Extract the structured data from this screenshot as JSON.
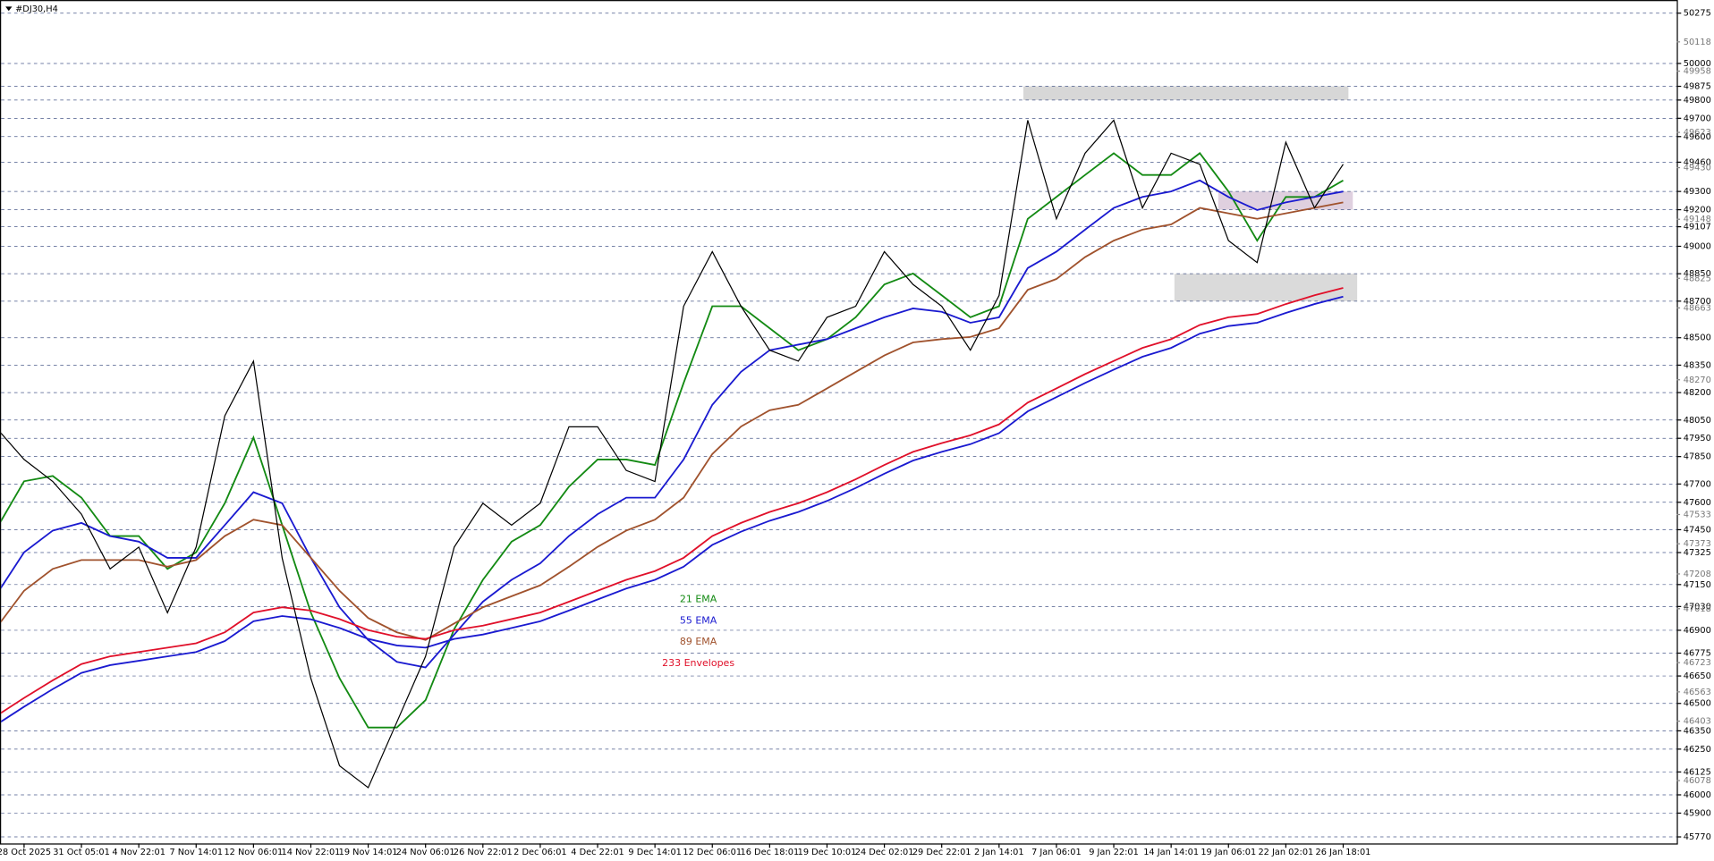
{
  "chart_data": {
    "type": "line",
    "title": "#DJ30,H4",
    "categories": [
      null,
      "28 Oct 2025",
      null,
      "31 Oct 05:01",
      null,
      "4 Nov 22:01",
      null,
      "7 Nov 14:01",
      null,
      "12 Nov 06:01",
      null,
      "14 Nov 22:01",
      null,
      "19 Nov 14:01",
      null,
      "24 Nov 06:01",
      null,
      "26 Nov 22:01",
      null,
      "2 Dec 06:01",
      null,
      "4 Dec 22:01",
      null,
      "9 Dec 14:01",
      null,
      "12 Dec 06:01",
      null,
      "16 Dec 18:01",
      null,
      "19 Dec 10:01",
      null,
      "24 Dec 02:01",
      null,
      "29 Dec 22:01",
      null,
      "2 Jan 14:01",
      null,
      "7 Jan 06:01",
      null,
      "9 Jan 22:01",
      null,
      "14 Jan 14:01",
      null,
      "19 Jan 06:01",
      null,
      "22 Jan 02:01",
      null,
      "26 Jan 18:01"
    ],
    "price": {
      "color": "#000000",
      "values": [
        48013,
        47834,
        47714,
        47535,
        47236,
        47355,
        46996,
        47355,
        48073,
        48372,
        47295,
        46637,
        46159,
        46039,
        46398,
        46757,
        47355,
        47595,
        47475,
        47595,
        48013,
        48013,
        47774,
        47714,
        48672,
        48971,
        48672,
        48432,
        48372,
        48612,
        48672,
        48971,
        48791,
        48672,
        48432,
        48731,
        49689,
        49150,
        49509,
        49689,
        49210,
        49509,
        49449,
        49031,
        48911,
        49569,
        49210,
        49449
      ]
    },
    "series": [
      {
        "name": "21 EMA",
        "color": "#138a13",
        "values": [
          47445,
          47715,
          47744,
          47625,
          47415,
          47415,
          47236,
          47326,
          47595,
          47954,
          47475,
          46997,
          46638,
          46368,
          46368,
          46518,
          46907,
          47176,
          47385,
          47475,
          47685,
          47834,
          47834,
          47804,
          48253,
          48672,
          48672,
          48552,
          48432,
          48492,
          48612,
          48791,
          48851,
          48732,
          48612,
          48672,
          49150,
          49270,
          49390,
          49509,
          49390,
          49390,
          49509,
          49300,
          49031,
          49270,
          49270,
          49360
        ]
      },
      {
        "name": "55 EMA",
        "color": "#1a1ad0",
        "values": [
          47086,
          47326,
          47445,
          47487,
          47415,
          47385,
          47296,
          47296,
          47475,
          47655,
          47595,
          47296,
          47026,
          46847,
          46727,
          46697,
          46877,
          47056,
          47176,
          47266,
          47415,
          47535,
          47625,
          47625,
          47834,
          48133,
          48313,
          48432,
          48462,
          48492,
          48552,
          48612,
          48660,
          48642,
          48582,
          48612,
          48881,
          48971,
          49091,
          49210,
          49270,
          49300,
          49360,
          49270,
          49198,
          49240,
          49270,
          49300
        ]
      },
      {
        "name": "89 EMA",
        "color": "#a0522d",
        "values": [
          46907,
          47116,
          47236,
          47284,
          47284,
          47284,
          47248,
          47284,
          47415,
          47505,
          47475,
          47296,
          47116,
          46967,
          46889,
          46847,
          46937,
          47026,
          47086,
          47146,
          47248,
          47356,
          47445,
          47505,
          47625,
          47864,
          48014,
          48103,
          48133,
          48223,
          48313,
          48403,
          48474,
          48492,
          48504,
          48552,
          48762,
          48821,
          48941,
          49031,
          49091,
          49120,
          49210,
          49180,
          49150,
          49180,
          49210,
          49240
        ]
      },
      {
        "name": "233 Envelopes",
        "color": "#e0102a",
        "lower_color": "#1a1ad0",
        "values": [
          46428,
          46530,
          46626,
          46715,
          46757,
          46781,
          46805,
          46829,
          46889,
          46997,
          47026,
          47008,
          46961,
          46901,
          46865,
          46853,
          46901,
          46925,
          46961,
          46997,
          47056,
          47116,
          47176,
          47224,
          47296,
          47415,
          47487,
          47547,
          47595,
          47655,
          47726,
          47804,
          47876,
          47924,
          47966,
          48026,
          48145,
          48223,
          48301,
          48373,
          48444,
          48492,
          48570,
          48612,
          48630,
          48684,
          48732,
          48773
        ],
        "lower": [
          46380,
          46482,
          46578,
          46667,
          46709,
          46733,
          46757,
          46781,
          46841,
          46949,
          46978,
          46960,
          46913,
          46853,
          46817,
          46805,
          46853,
          46877,
          46913,
          46949,
          47008,
          47068,
          47128,
          47176,
          47248,
          47367,
          47439,
          47499,
          47547,
          47607,
          47678,
          47756,
          47828,
          47876,
          47918,
          47978,
          48097,
          48175,
          48253,
          48325,
          48396,
          48444,
          48522,
          48564,
          48582,
          48636,
          48684,
          48725
        ]
      }
    ],
    "zones": [
      {
        "low": 49800,
        "high": 49875,
        "color": "#d3d3d3"
      },
      {
        "low": 49200,
        "high": 49300,
        "color": "#dccbdc"
      },
      {
        "low": 48700,
        "high": 48850,
        "color": "#d6d6d6"
      }
    ],
    "ylim": [
      45770,
      50275
    ],
    "yticks": [
      50275,
      50000,
      49875,
      49800,
      49700,
      49600,
      49460,
      49300,
      49200,
      49107,
      49000,
      48850,
      48700,
      48500,
      48350,
      48200,
      48050,
      47950,
      47850,
      47700,
      47600,
      47450,
      47325,
      47150,
      47030,
      46900,
      46775,
      46650,
      46500,
      46350,
      46250,
      46125,
      46000,
      45900,
      45770
    ],
    "minor_yticks": [
      50118,
      49958,
      49623,
      49430,
      49148,
      48825,
      48663,
      48270,
      47533,
      47373,
      47208,
      47018,
      46723,
      46563,
      46403,
      46078
    ],
    "grid": true
  }
}
